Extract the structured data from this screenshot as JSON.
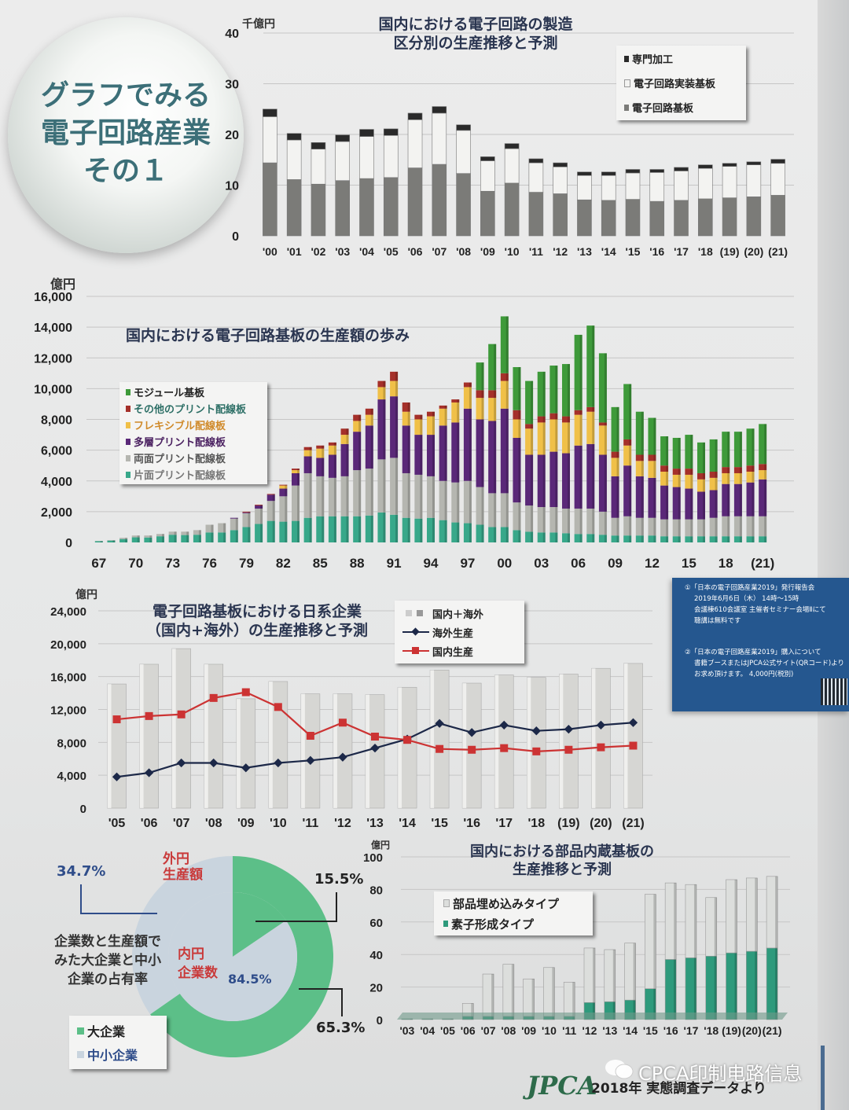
{
  "poster": {
    "heading_lines": [
      "グラフでみる",
      "電子回路産業",
      "その１"
    ],
    "footer_logo": "JPCA",
    "footer_text": "2018年 実態調査データより",
    "watermark": "CPCA印制电路信息"
  },
  "notice": {
    "lines": [
      "①「日本の電子回路産業2019」発行報告会",
      "2019年6月6日（木） 14時～15時",
      "会議棟610会議室 主催者セミナー会場Ⅱにて",
      "聴講は無料です",
      "②「日本の電子回路産業2019」購入について",
      "書籍ブースまたはJPCA公式サイト(QRコード)より",
      "お求め頂けます。 4,000円(税別)"
    ]
  },
  "chart_data": [
    {
      "id": "circuit-manufacturing",
      "type": "bar",
      "stacked": true,
      "title": "国内における電子回路の製造\n区分別の生産推移と予測",
      "unit_label": "千億円",
      "ylim": [
        0,
        40
      ],
      "yticks": [
        "0",
        "10",
        "20",
        "30",
        "40"
      ],
      "grid": true,
      "legend_position": "top-right",
      "categories": [
        "'00",
        "'01",
        "'02",
        "'03",
        "'04",
        "'05",
        "'06",
        "'07",
        "'08",
        "'09",
        "'10",
        "'11",
        "'12",
        "'13",
        "'14",
        "'15",
        "'16",
        "'17",
        "'18",
        "(19)",
        "(20)",
        "(21)"
      ],
      "series": [
        {
          "name": "電子回路基板",
          "color": "#7b7b78",
          "values": [
            14.4,
            11.1,
            10.2,
            10.9,
            11.3,
            11.5,
            13.4,
            14.1,
            12.3,
            8.8,
            10.4,
            8.6,
            8.3,
            7.1,
            7.0,
            7.2,
            6.8,
            7.0,
            7.3,
            7.5,
            7.7,
            8.0
          ]
        },
        {
          "name": "電子回路実装基板",
          "color": "#f3f3f1",
          "values": [
            9.1,
            7.8,
            6.9,
            7.7,
            8.3,
            8.3,
            9.5,
            10.1,
            8.5,
            6.0,
            6.8,
            5.8,
            5.3,
            4.8,
            4.9,
            5.2,
            5.7,
            5.8,
            6.0,
            6.2,
            6.3,
            6.3
          ]
        },
        {
          "name": "専門加工",
          "color": "#2a2a2a",
          "values": [
            1.5,
            1.3,
            1.3,
            1.3,
            1.4,
            1.3,
            1.3,
            1.3,
            1.1,
            0.8,
            1.0,
            0.8,
            0.8,
            0.7,
            0.7,
            0.7,
            0.6,
            0.7,
            0.7,
            0.6,
            0.6,
            0.8
          ]
        }
      ],
      "legend_order": [
        "専門加工",
        "電子回路実装基板",
        "電子回路基板"
      ]
    },
    {
      "id": "pcb-production-history",
      "type": "bar",
      "stacked": true,
      "title": "国内における電子回路基板の生産額の歩み",
      "unit_label": "億円",
      "ylim": [
        0,
        16000
      ],
      "yticks": [
        "0",
        "2,000",
        "4,000",
        "6,000",
        "8,000",
        "10,000",
        "12,000",
        "14,000",
        "16,000"
      ],
      "grid": true,
      "legend_position": "left",
      "categories": [
        "67",
        "68",
        "69",
        "70",
        "71",
        "72",
        "73",
        "74",
        "75",
        "76",
        "77",
        "78",
        "79",
        "80",
        "81",
        "82",
        "83",
        "84",
        "85",
        "86",
        "87",
        "88",
        "89",
        "90",
        "91",
        "92",
        "93",
        "94",
        "95",
        "96",
        "97",
        "98",
        "99",
        "00",
        "01",
        "02",
        "03",
        "04",
        "05",
        "06",
        "07",
        "08",
        "09",
        "10",
        "11",
        "12",
        "13",
        "14",
        "15",
        "16",
        "17",
        "18",
        "19",
        "20",
        "21"
      ],
      "xtick_labels": [
        "67",
        "70",
        "73",
        "76",
        "79",
        "82",
        "85",
        "88",
        "91",
        "94",
        "97",
        "00",
        "03",
        "06",
        "09",
        "12",
        "15",
        "18",
        "(21)"
      ],
      "series": [
        {
          "name": "片面プリント配線板",
          "color": "#38a88a",
          "values": [
            80,
            120,
            220,
            330,
            320,
            400,
            500,
            480,
            500,
            650,
            650,
            800,
            1000,
            1200,
            1400,
            1350,
            1400,
            1600,
            1700,
            1700,
            1700,
            1700,
            1750,
            1950,
            1800,
            1600,
            1550,
            1600,
            1450,
            1300,
            1250,
            1150,
            1000,
            1000,
            800,
            700,
            650,
            650,
            600,
            550,
            550,
            500,
            450,
            450,
            450,
            450,
            400,
            400,
            400,
            400,
            400,
            400,
            400,
            400,
            400
          ]
        },
        {
          "name": "両面プリント配線板",
          "color": "#b5b6b0",
          "values": [
            20,
            30,
            80,
            120,
            130,
            150,
            200,
            220,
            300,
            500,
            600,
            750,
            900,
            1000,
            1300,
            1650,
            2300,
            2900,
            2600,
            2500,
            2600,
            3000,
            3050,
            3450,
            3700,
            2900,
            2850,
            2700,
            2550,
            2600,
            2750,
            2450,
            2200,
            2200,
            1800,
            1700,
            1650,
            1650,
            1600,
            1650,
            1650,
            1500,
            1150,
            1250,
            1150,
            1150,
            1100,
            1100,
            1100,
            1100,
            1200,
            1300,
            1300,
            1300,
            1300
          ]
        },
        {
          "name": "多層プリント配線板",
          "color": "#5a2878",
          "values": [
            0,
            0,
            0,
            0,
            0,
            0,
            0,
            0,
            0,
            0,
            0,
            50,
            50,
            200,
            400,
            500,
            800,
            1100,
            1200,
            1500,
            2100,
            2500,
            2800,
            3900,
            4000,
            3100,
            2600,
            2700,
            3600,
            3900,
            4700,
            4400,
            4700,
            5500,
            4200,
            3300,
            3400,
            3600,
            3600,
            4100,
            4200,
            3700,
            2700,
            3300,
            2700,
            2600,
            2200,
            2100,
            2000,
            1800,
            1800,
            2100,
            2100,
            2200,
            2400
          ]
        },
        {
          "name": "フレキシブル配線板",
          "color": "#f0c048",
          "values": [
            0,
            0,
            0,
            0,
            0,
            0,
            0,
            0,
            0,
            0,
            0,
            0,
            0,
            0,
            0,
            200,
            200,
            400,
            600,
            600,
            600,
            700,
            700,
            800,
            1000,
            900,
            1000,
            1200,
            1100,
            1300,
            1400,
            1400,
            1500,
            1800,
            1200,
            1700,
            2100,
            2100,
            2000,
            2000,
            2100,
            1900,
            1200,
            1300,
            1000,
            1100,
            900,
            800,
            900,
            800,
            800,
            700,
            700,
            700,
            600
          ]
        },
        {
          "name": "その他のプリント配線板",
          "color": "#a5302a",
          "values": [
            0,
            0,
            0,
            0,
            0,
            0,
            0,
            0,
            0,
            0,
            0,
            0,
            50,
            50,
            50,
            50,
            100,
            200,
            200,
            200,
            400,
            400,
            400,
            400,
            600,
            600,
            300,
            300,
            200,
            200,
            300,
            500,
            500,
            500,
            600,
            300,
            400,
            400,
            400,
            300,
            300,
            200,
            400,
            400,
            400,
            400,
            400,
            400,
            400,
            400,
            400,
            400,
            400,
            400,
            400
          ]
        },
        {
          "name": "モジュール基板",
          "color": "#3e9a3a",
          "values": [
            0,
            0,
            0,
            0,
            0,
            0,
            0,
            0,
            0,
            0,
            0,
            0,
            0,
            0,
            0,
            0,
            0,
            0,
            0,
            0,
            0,
            0,
            0,
            0,
            0,
            0,
            0,
            0,
            0,
            0,
            0,
            1800,
            3000,
            3700,
            2800,
            2800,
            2900,
            3100,
            3400,
            4900,
            5300,
            4500,
            2900,
            3600,
            2800,
            2400,
            1900,
            2000,
            2200,
            2000,
            2100,
            2300,
            2300,
            2400,
            2600
          ]
        }
      ],
      "legend_order": [
        "モジュール基板",
        "その他のプリント配線板",
        "フレキシブル配線板",
        "多層プリント配線板",
        "両面プリント配線板",
        "片面プリント配線板"
      ]
    },
    {
      "id": "japanese-companies-production",
      "type": "bar",
      "title": "電子回路基板における日系企業\n（国内+海外）の生産推移と予測",
      "unit_label": "億円",
      "ylim": [
        0,
        24000
      ],
      "yticks": [
        "0",
        "4,000",
        "8,000",
        "12,000",
        "16,000",
        "20,000",
        "24,000"
      ],
      "grid": true,
      "legend_position": "top-right",
      "categories": [
        "'05",
        "'06",
        "'07",
        "'08",
        "'09",
        "'10",
        "'11",
        "'12",
        "'13",
        "'14",
        "'15",
        "'16",
        "'17",
        "'18",
        "(19)",
        "(20)",
        "(21)"
      ],
      "series": [
        {
          "name": "国内＋海外",
          "kind": "bar",
          "color": "#d6d6d3",
          "values": [
            15100,
            17500,
            19400,
            17500,
            13300,
            15400,
            13900,
            13900,
            13800,
            14700,
            16800,
            15200,
            16200,
            15900,
            16300,
            17000,
            17600
          ]
        },
        {
          "name": "海外生産",
          "kind": "line",
          "marker": "diamond",
          "color": "#1c2848",
          "values": [
            3800,
            4300,
            5500,
            5500,
            4900,
            5500,
            5800,
            6200,
            7300,
            8400,
            10300,
            9200,
            10100,
            9400,
            9600,
            10100,
            10400
          ]
        },
        {
          "name": "国内生産",
          "kind": "line",
          "marker": "square",
          "color": "#cc3333",
          "values": [
            10800,
            11200,
            11400,
            13400,
            14100,
            12300,
            8800,
            10400,
            8700,
            8300,
            7200,
            7100,
            7300,
            6900,
            7100,
            7400,
            7600
          ]
        }
      ]
    },
    {
      "id": "company-share",
      "type": "pie",
      "title": "企業数と生産額で\nみた大企業と中小\n企業の占有率",
      "rings": [
        {
          "label": "外円\n生産額",
          "slices": [
            {
              "name": "大企業",
              "value": 65.3,
              "label": "65.3%"
            },
            {
              "name": "中小企業",
              "value": 34.7,
              "label": "34.7%"
            }
          ]
        },
        {
          "label": "内円\n企業数",
          "slices": [
            {
              "name": "大企業",
              "value": 15.5,
              "label": "15.5%"
            },
            {
              "name": "中小企業",
              "value": 84.5,
              "label": "84.5%"
            }
          ]
        }
      ],
      "colors": {
        "大企業": "#5cbf88",
        "中小企業": "#c9d4de"
      },
      "legend": [
        "大企業",
        "中小企業"
      ],
      "legend_position": "bottom-left"
    },
    {
      "id": "embedded-component-substrate",
      "type": "bar",
      "stacked": true,
      "title": "国内における部品内蔵基板の\n生産推移と予測",
      "unit_label": "億円",
      "ylim": [
        0,
        100
      ],
      "yticks": [
        "0",
        "20",
        "40",
        "60",
        "80",
        "100"
      ],
      "grid": true,
      "legend_position": "top-left",
      "categories": [
        "'03",
        "'04",
        "'05",
        "'06",
        "'07",
        "'08",
        "'09",
        "'10",
        "'11",
        "'12",
        "'13",
        "'14",
        "'15",
        "'16",
        "'17",
        "'18",
        "(19)",
        "(20)",
        "(21)"
      ],
      "series": [
        {
          "name": "素子形成タイプ",
          "color": "#2e9a7c",
          "values": [
            0.5,
            0.5,
            0.5,
            2,
            2,
            2,
            2,
            2,
            2,
            10.5,
            11,
            12,
            19,
            37,
            38,
            39,
            41,
            42,
            44
          ]
        },
        {
          "name": "部品埋め込みタイプ",
          "color": "#dcdedc",
          "values": [
            0,
            0,
            0,
            8,
            26,
            32,
            23,
            30,
            21,
            33.5,
            32,
            35,
            58,
            47,
            45,
            36,
            45,
            45,
            44
          ]
        }
      ],
      "legend_order": [
        "部品埋め込みタイプ",
        "素子形成タイプ"
      ]
    }
  ]
}
